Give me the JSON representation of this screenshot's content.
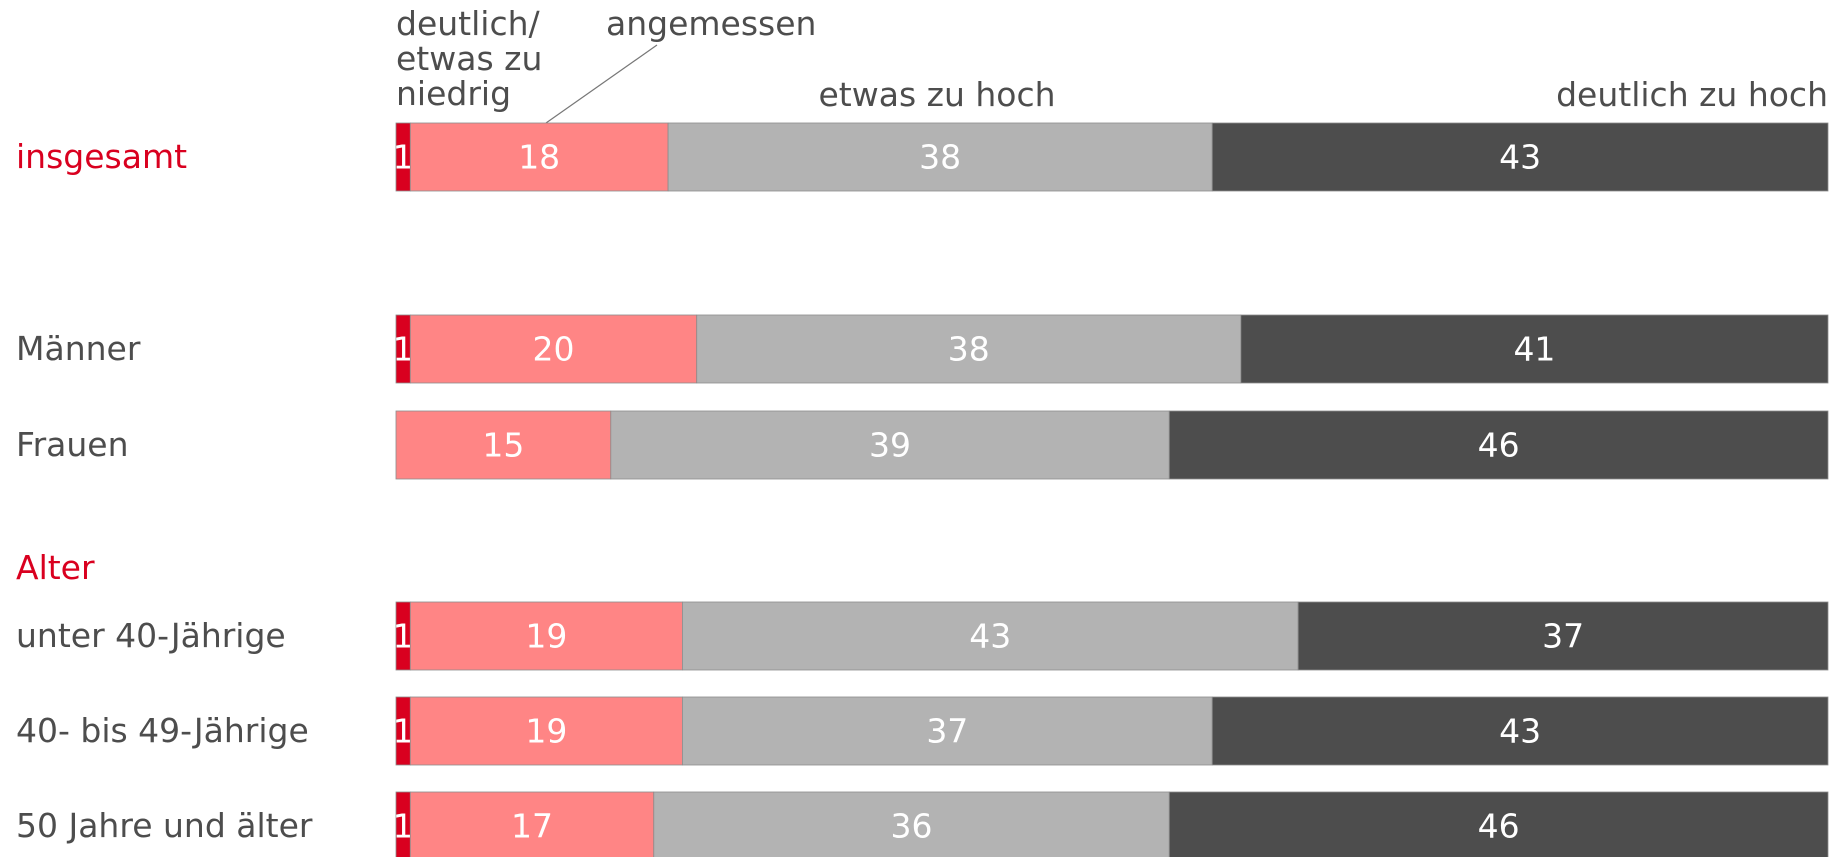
{
  "chart_data": {
    "type": "stacked-bar-horizontal",
    "categories": [
      "insgesamt",
      "Männer",
      "Frauen",
      "unter 40-Jährige",
      "40- bis 49-Jährige",
      "50 Jahre und älter"
    ],
    "group_label": "Alter",
    "xlim": [
      0,
      100
    ],
    "series": [
      {
        "name": "deutlich/\netwas zu\nniedrig",
        "color": "#d9001f",
        "values": [
          1,
          1,
          null,
          1,
          1,
          1
        ]
      },
      {
        "name": "angemessen",
        "color": "#ff8585",
        "values": [
          18,
          20,
          15,
          19,
          19,
          17
        ]
      },
      {
        "name": "etwas zu hoch",
        "color": "#b3b3b3",
        "values": [
          38,
          38,
          39,
          43,
          37,
          36
        ]
      },
      {
        "name": "deutlich zu hoch",
        "color": "#4d4d4d",
        "values": [
          43,
          41,
          46,
          37,
          43,
          46
        ]
      }
    ]
  }
}
